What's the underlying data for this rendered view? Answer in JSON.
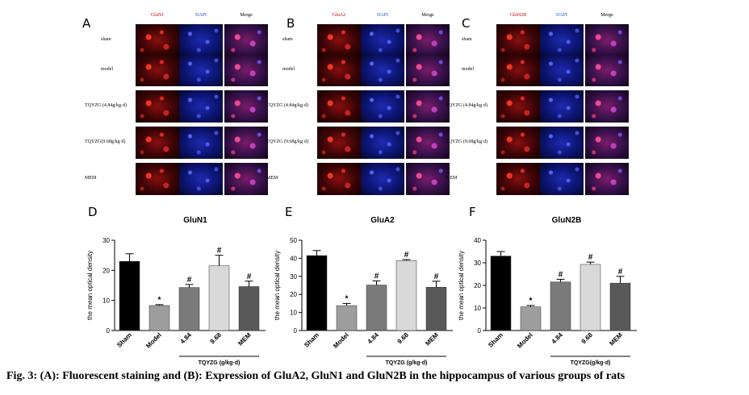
{
  "micrographs": [
    {
      "letter": "A",
      "columns": [
        {
          "label": "GluN1",
          "color": "#c00000"
        },
        {
          "label": "DAPI",
          "color": "#2050c8"
        },
        {
          "label": "Merge",
          "color": "#000000"
        }
      ],
      "rows": [
        "sham",
        "model",
        "TQYZG (4.84g/kg·d)",
        "TQYZG(9.68g/kg·d)",
        "MEM"
      ]
    },
    {
      "letter": "B",
      "columns": [
        {
          "label": "GluA2",
          "color": "#c00000"
        },
        {
          "label": "DAPI",
          "color": "#2050c8"
        },
        {
          "label": "Merge",
          "color": "#000000"
        }
      ],
      "rows": [
        "sham",
        "model",
        "TQYZG (4.84g/kg·d)",
        "TQYZG (9.68g/kg·d)",
        "MEM"
      ]
    },
    {
      "letter": "C",
      "columns": [
        {
          "label": "GluN2B",
          "color": "#c00000"
        },
        {
          "label": "DAPI",
          "color": "#2050c8"
        },
        {
          "label": "Merge",
          "color": "#000000"
        }
      ],
      "rows": [
        "sham",
        "model",
        "TQYZG (4.84g/kg·d)",
        "TQYZG (9.68g/kg·d)",
        "MEM"
      ]
    }
  ],
  "chart_data": [
    {
      "letter": "D",
      "type": "bar",
      "title": "GluN1",
      "ylabel": "the mean optical density",
      "xlabel": "",
      "categories": [
        "Sham",
        "Model",
        "4.84",
        "9.68",
        "MEM"
      ],
      "values": [
        23,
        8.3,
        14.3,
        21.5,
        14.6
      ],
      "errors": [
        2.5,
        0.3,
        1.0,
        3.5,
        1.8
      ],
      "annotations": [
        "",
        "*",
        "#",
        "#",
        "#"
      ],
      "bar_colors": [
        "#000000",
        "#9e9e9e",
        "#7a7a7a",
        "#d9d9d9",
        "#595959"
      ],
      "ylim": [
        0,
        30
      ],
      "yticks": [
        0,
        10,
        20,
        30
      ],
      "group_label": "TQYZG  (g/kg·d)",
      "grid": false
    },
    {
      "letter": "E",
      "type": "bar",
      "title": "GluA2",
      "ylabel": "the mean optical density",
      "xlabel": "",
      "categories": [
        "Sham",
        "Model",
        "4.84",
        "9.68",
        "MEM"
      ],
      "values": [
        41.5,
        13.8,
        25.2,
        38.7,
        24
      ],
      "errors": [
        2.8,
        1.2,
        2.3,
        0.6,
        3.3
      ],
      "annotations": [
        "",
        "*",
        "#",
        "#",
        "#"
      ],
      "bar_colors": [
        "#000000",
        "#9e9e9e",
        "#7a7a7a",
        "#d9d9d9",
        "#595959"
      ],
      "ylim": [
        0,
        50
      ],
      "yticks": [
        0,
        10,
        20,
        30,
        40,
        50
      ],
      "group_label": "TQYZG  (g/kg·d)",
      "grid": false
    },
    {
      "letter": "F",
      "type": "bar",
      "title": "GluN2B",
      "ylabel": "the mean optical density",
      "xlabel": "",
      "categories": [
        "Sham",
        "Model",
        "4.84",
        "9.68",
        "MEM"
      ],
      "values": [
        33,
        10.5,
        21.5,
        29.3,
        21
      ],
      "errors": [
        2.0,
        0.6,
        1.2,
        1.0,
        3.0
      ],
      "annotations": [
        "",
        "*",
        "#",
        "#",
        "#"
      ],
      "bar_colors": [
        "#000000",
        "#9e9e9e",
        "#7a7a7a",
        "#d9d9d9",
        "#595959"
      ],
      "ylim": [
        0,
        40
      ],
      "yticks": [
        0,
        10,
        20,
        30,
        40
      ],
      "group_label": "TQYZG(g/kg·d)",
      "grid": false
    }
  ],
  "caption": "Fig. 3: (A): Fluorescent staining and (B): Expression of GluA2, GluN1 and GluN2B in the hippocampus of various groups of rats"
}
